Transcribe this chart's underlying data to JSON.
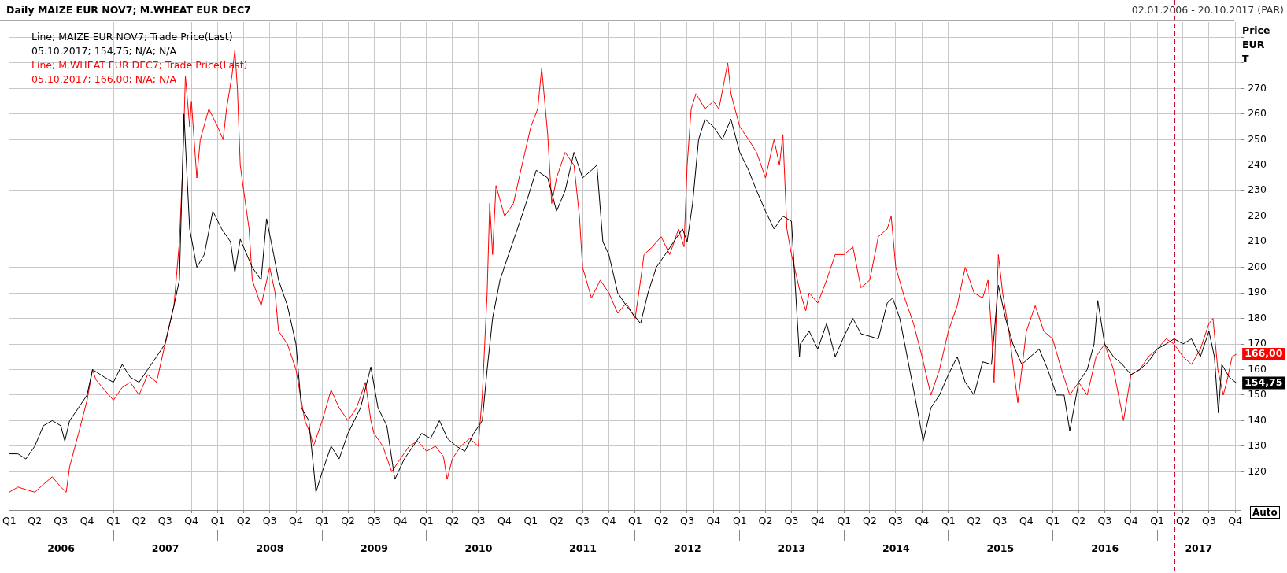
{
  "chart_data": {
    "type": "line",
    "title": "Daily MAIZE EUR NOV7; M.WHEAT EUR DEC7",
    "subtitle": "02.01.2006 - 20.10.2017 (PAR)",
    "ylabel": "Price EUR T",
    "annotations": [
      "05.10.2017; 154,75; N/A; N/A",
      "05.10.2017; 166,00; N/A; N/A",
      "Auto"
    ],
    "legend": "top left",
    "grid": true,
    "marker": "none",
    "line_style": "solid",
    "xlim": [
      "2006-01-02",
      "2017-10-20"
    ],
    "xticks": [
      {
        "value": "2006-01-02",
        "label": "Q1"
      },
      {
        "value": "2006-04-01",
        "label": "Q2"
      },
      {
        "value": "2006-07-01",
        "label": "Q3"
      },
      {
        "value": "2006-10-01",
        "label": "Q4"
      },
      {
        "value": "2007-01-01",
        "label": "Q1"
      },
      {
        "value": "2007-04-01",
        "label": "Q2"
      },
      {
        "value": "2007-07-01",
        "label": "Q3"
      },
      {
        "value": "2007-10-01",
        "label": "Q4"
      },
      {
        "value": "2008-01-01",
        "label": "Q1"
      },
      {
        "value": "2008-04-01",
        "label": "Q2"
      },
      {
        "value": "2008-07-01",
        "label": "Q3"
      },
      {
        "value": "2008-10-01",
        "label": "Q4"
      },
      {
        "value": "2009-01-01",
        "label": "Q1"
      },
      {
        "value": "2009-04-01",
        "label": "Q2"
      },
      {
        "value": "2009-07-01",
        "label": "Q3"
      },
      {
        "value": "2009-10-01",
        "label": "Q4"
      },
      {
        "value": "2010-01-01",
        "label": "Q1"
      },
      {
        "value": "2010-04-01",
        "label": "Q2"
      },
      {
        "value": "2010-07-01",
        "label": "Q3"
      },
      {
        "value": "2010-10-01",
        "label": "Q4"
      },
      {
        "value": "2011-01-01",
        "label": "Q1"
      },
      {
        "value": "2011-04-01",
        "label": "Q2"
      },
      {
        "value": "2011-07-01",
        "label": "Q3"
      },
      {
        "value": "2011-10-01",
        "label": "Q4"
      },
      {
        "value": "2012-01-01",
        "label": "Q1"
      },
      {
        "value": "2012-04-01",
        "label": "Q2"
      },
      {
        "value": "2012-07-01",
        "label": "Q3"
      },
      {
        "value": "2012-10-01",
        "label": "Q4"
      },
      {
        "value": "2013-01-01",
        "label": "Q1"
      },
      {
        "value": "2013-04-01",
        "label": "Q2"
      },
      {
        "value": "2013-07-01",
        "label": "Q3"
      },
      {
        "value": "2013-10-01",
        "label": "Q4"
      },
      {
        "value": "2014-01-01",
        "label": "Q1"
      },
      {
        "value": "2014-04-01",
        "label": "Q2"
      },
      {
        "value": "2014-07-01",
        "label": "Q3"
      },
      {
        "value": "2014-10-01",
        "label": "Q4"
      },
      {
        "value": "2015-01-01",
        "label": "Q1"
      },
      {
        "value": "2015-04-01",
        "label": "Q2"
      },
      {
        "value": "2015-07-01",
        "label": "Q3"
      },
      {
        "value": "2015-10-01",
        "label": "Q4"
      },
      {
        "value": "2016-01-01",
        "label": "Q1"
      },
      {
        "value": "2016-04-01",
        "label": "Q2"
      },
      {
        "value": "2016-07-01",
        "label": "Q3"
      },
      {
        "value": "2016-10-01",
        "label": "Q4"
      },
      {
        "value": "2017-01-01",
        "label": "Q1"
      },
      {
        "value": "2017-04-01",
        "label": "Q2"
      },
      {
        "value": "2017-07-01",
        "label": "Q3"
      },
      {
        "value": "2017-10-01",
        "label": "Q4"
      }
    ],
    "x2lim": [
      "2006-01-02",
      "2017-10-20"
    ],
    "x2ticks": [
      {
        "value": "2006-01-02",
        "label": null
      },
      {
        "value": "2006-07-02",
        "label": "2006"
      },
      {
        "value": "2007-01-01",
        "label": null
      },
      {
        "value": "2007-07-02",
        "label": "2007"
      },
      {
        "value": "2008-01-01",
        "label": null
      },
      {
        "value": "2008-07-02",
        "label": "2008"
      },
      {
        "value": "2009-01-01",
        "label": null
      },
      {
        "value": "2009-07-02",
        "label": "2009"
      },
      {
        "value": "2010-01-01",
        "label": null
      },
      {
        "value": "2010-07-02",
        "label": "2010"
      },
      {
        "value": "2011-01-01",
        "label": null
      },
      {
        "value": "2011-07-02",
        "label": "2011"
      },
      {
        "value": "2012-01-01",
        "label": null
      },
      {
        "value": "2012-07-02",
        "label": "2012"
      },
      {
        "value": "2013-01-01",
        "label": null
      },
      {
        "value": "2013-07-02",
        "label": "2013"
      },
      {
        "value": "2014-01-01",
        "label": null
      },
      {
        "value": "2014-07-02",
        "label": "2014"
      },
      {
        "value": "2015-01-01",
        "label": null
      },
      {
        "value": "2015-07-02",
        "label": "2015"
      },
      {
        "value": "2016-01-01",
        "label": null
      },
      {
        "value": "2016-07-02",
        "label": "2016"
      },
      {
        "value": "2017-01-01",
        "label": null
      },
      {
        "value": "2017-05-26",
        "label": "2017"
      }
    ],
    "ylim": [
      105,
      296
    ],
    "yticks": [
      {
        "value": 110,
        "label": null
      },
      120,
      130,
      140,
      150,
      160,
      170,
      180,
      190,
      200,
      210,
      220,
      230,
      240,
      250,
      260,
      270,
      {
        "value": 280,
        "label": null
      },
      {
        "value": 290,
        "label": null
      }
    ],
    "ref_lines": [
      {
        "axis": "x",
        "value": "2017-03-03",
        "label": null,
        "color": "#c8102e",
        "line_style": "dashed"
      }
    ],
    "series": [
      {
        "name": "Line; MAIZE EUR NOV7; Trade Price(Last)",
        "color": "#000000",
        "x": [
          "2006-01-02",
          "2006-02-01",
          "2006-03-01",
          "2006-04-01",
          "2006-05-01",
          "2006-06-01",
          "2006-07-01",
          "2006-07-15",
          "2006-08-01",
          "2006-09-01",
          "2006-10-01",
          "2006-10-20",
          "2006-12-01",
          "2007-01-01",
          "2007-02-01",
          "2007-03-01",
          "2007-04-01",
          "2007-05-01",
          "2007-06-01",
          "2007-07-01",
          "2007-08-01",
          "2007-08-20",
          "2007-09-05",
          "2007-09-25",
          "2007-10-20",
          "2007-11-15",
          "2007-12-15",
          "2008-01-15",
          "2008-02-15",
          "2008-03-01",
          "2008-03-20",
          "2008-05-01",
          "2008-06-01",
          "2008-06-20",
          "2008-07-15",
          "2008-08-01",
          "2008-09-01",
          "2008-10-01",
          "2008-10-20",
          "2008-11-15",
          "2008-12-10",
          "2009-01-01",
          "2009-02-01",
          "2009-03-01",
          "2009-04-01",
          "2009-05-15",
          "2009-06-20",
          "2009-07-15",
          "2009-08-15",
          "2009-09-12",
          "2009-10-15",
          "2009-11-15",
          "2009-12-15",
          "2010-01-15",
          "2010-02-15",
          "2010-03-15",
          "2010-04-15",
          "2010-05-15",
          "2010-06-15",
          "2010-07-15",
          "2010-08-01",
          "2010-08-20",
          "2010-09-15",
          "2010-10-15",
          "2010-11-15",
          "2010-12-15",
          "2011-01-20",
          "2011-03-01",
          "2011-04-01",
          "2011-05-01",
          "2011-06-01",
          "2011-07-01",
          "2011-08-01",
          "2011-08-20",
          "2011-09-10",
          "2011-10-01",
          "2011-11-01",
          "2011-12-01",
          "2012-01-20",
          "2012-02-15",
          "2012-03-15",
          "2012-04-15",
          "2012-05-15",
          "2012-06-15",
          "2012-07-01",
          "2012-07-20",
          "2012-08-10",
          "2012-09-01",
          "2012-10-01",
          "2012-11-01",
          "2012-12-01",
          "2013-01-01",
          "2013-02-01",
          "2013-03-01",
          "2013-04-01",
          "2013-05-01",
          "2013-06-01",
          "2013-07-01",
          "2013-07-29",
          "2013-08-01",
          "2013-09-01",
          "2013-10-01",
          "2013-11-01",
          "2013-12-01",
          "2014-01-01",
          "2014-02-01",
          "2014-03-01",
          "2014-04-01",
          "2014-05-01",
          "2014-06-01",
          "2014-06-20",
          "2014-07-15",
          "2014-08-10",
          "2014-09-05",
          "2014-10-05",
          "2014-11-01",
          "2014-12-01",
          "2015-01-01",
          "2015-02-01",
          "2015-03-01",
          "2015-04-01",
          "2015-05-01",
          "2015-06-01",
          "2015-06-25",
          "2015-07-20",
          "2015-08-15",
          "2015-09-15",
          "2015-10-15",
          "2015-11-15",
          "2015-12-15",
          "2016-01-15",
          "2016-02-10",
          "2016-03-01",
          "2016-04-01",
          "2016-05-01",
          "2016-05-25",
          "2016-06-07",
          "2016-07-01",
          "2016-08-01",
          "2016-09-01",
          "2016-10-01",
          "2016-11-01",
          "2016-12-01",
          "2017-01-01",
          "2017-02-01",
          "2017-03-01",
          "2017-04-01",
          "2017-05-01",
          "2017-06-01",
          "2017-07-01",
          "2017-07-20",
          "2017-08-03",
          "2017-08-15",
          "2017-09-10",
          "2017-10-05"
        ],
        "values": [
          127,
          127,
          125,
          130,
          138,
          140,
          138,
          132,
          140,
          145,
          150,
          160,
          157,
          155,
          162,
          157,
          155,
          160,
          165,
          170,
          185,
          195,
          260,
          215,
          200,
          205,
          222,
          215,
          210,
          198,
          211,
          200,
          195,
          219,
          205,
          195,
          185,
          170,
          145,
          140,
          112,
          120,
          130,
          125,
          135,
          145,
          161,
          145,
          138,
          117,
          125,
          130,
          135,
          133,
          140,
          133,
          130,
          128,
          135,
          140,
          160,
          180,
          195,
          205,
          215,
          225,
          238,
          235,
          222,
          230,
          245,
          235,
          238,
          240,
          210,
          205,
          190,
          185,
          178,
          190,
          200,
          205,
          210,
          215,
          210,
          225,
          250,
          258,
          255,
          250,
          258,
          245,
          238,
          230,
          222,
          215,
          220,
          218,
          165,
          170,
          175,
          168,
          178,
          165,
          173,
          180,
          174,
          173,
          172,
          186,
          188,
          180,
          165,
          150,
          132,
          145,
          150,
          158,
          165,
          155,
          150,
          163,
          162,
          193,
          180,
          170,
          162,
          165,
          168,
          160,
          150,
          150,
          136,
          155,
          160,
          170,
          187,
          170,
          165,
          162,
          158,
          160,
          163,
          168,
          170,
          172,
          170,
          172,
          165,
          175,
          165,
          143,
          162,
          157,
          154.75
        ],
        "value_labels": [
          null,
          null,
          null,
          null,
          null,
          null,
          null,
          null,
          null,
          null,
          null,
          null,
          null,
          null,
          null,
          null,
          null,
          null,
          null,
          null,
          null,
          null,
          null,
          null,
          null,
          null,
          null,
          null,
          null,
          null,
          null,
          null,
          null,
          null,
          null,
          null,
          null,
          null,
          null,
          null,
          null,
          null,
          null,
          null,
          null,
          null,
          null,
          null,
          null,
          null,
          null,
          null,
          null,
          null,
          null,
          null,
          null,
          null,
          null,
          null,
          null,
          null,
          null,
          null,
          null,
          null,
          null,
          null,
          null,
          null,
          null,
          null,
          null,
          null,
          null,
          null,
          null,
          null,
          null,
          null,
          null,
          null,
          null,
          null,
          null,
          null,
          null,
          null,
          null,
          null,
          null,
          null,
          null,
          null,
          null,
          null,
          null,
          null,
          null,
          null,
          null,
          null,
          null,
          null,
          null,
          null,
          null,
          null,
          null,
          null,
          null,
          null,
          null,
          null,
          null,
          null,
          null,
          null,
          null,
          null,
          null,
          null,
          null,
          null,
          null,
          null,
          null,
          null,
          null,
          null,
          null,
          null,
          null,
          null,
          null,
          null,
          null,
          null,
          null,
          null,
          null,
          null,
          null,
          null,
          null,
          null,
          null,
          null,
          null,
          null,
          null,
          null,
          null,
          null,
          "154,75"
        ]
      },
      {
        "name": "Line; M.WHEAT EUR DEC7; Trade Price(Last)",
        "color": "#ff0000",
        "x": [
          "2006-01-02",
          "2006-02-01",
          "2006-03-01",
          "2006-04-01",
          "2006-05-01",
          "2006-06-01",
          "2006-07-01",
          "2006-07-20",
          "2006-08-01",
          "2006-09-01",
          "2006-10-01",
          "2006-10-20",
          "2006-11-01",
          "2006-12-01",
          "2007-01-01",
          "2007-02-01",
          "2007-03-01",
          "2007-04-01",
          "2007-05-01",
          "2007-06-01",
          "2007-07-01",
          "2007-08-01",
          "2007-08-20",
          "2007-09-01",
          "2007-09-10",
          "2007-09-25",
          "2007-10-01",
          "2007-10-20",
          "2007-11-01",
          "2007-12-01",
          "2008-01-01",
          "2008-01-20",
          "2008-02-01",
          "2008-02-20",
          "2008-03-01",
          "2008-03-10",
          "2008-03-20",
          "2008-04-01",
          "2008-04-20",
          "2008-05-01",
          "2008-06-01",
          "2008-07-01",
          "2008-07-20",
          "2008-08-01",
          "2008-09-01",
          "2008-10-01",
          "2008-11-01",
          "2008-11-20",
          "2008-12-01",
          "2009-01-01",
          "2009-02-01",
          "2009-03-01",
          "2009-04-01",
          "2009-05-01",
          "2009-06-01",
          "2009-06-20",
          "2009-07-01",
          "2009-08-01",
          "2009-09-01",
          "2009-10-01",
          "2009-11-01",
          "2009-12-01",
          "2010-01-01",
          "2010-02-01",
          "2010-03-01",
          "2010-03-14",
          "2010-04-01",
          "2010-05-01",
          "2010-06-01",
          "2010-07-01",
          "2010-07-15",
          "2010-08-01",
          "2010-08-10",
          "2010-08-20",
          "2010-09-01",
          "2010-10-01",
          "2010-11-01",
          "2010-12-01",
          "2011-01-01",
          "2011-01-25",
          "2011-02-08",
          "2011-03-01",
          "2011-03-15",
          "2011-04-01",
          "2011-05-01",
          "2011-06-01",
          "2011-06-20",
          "2011-07-01",
          "2011-08-01",
          "2011-09-01",
          "2011-10-01",
          "2011-11-01",
          "2011-12-01",
          "2012-01-01",
          "2012-01-20",
          "2012-02-01",
          "2012-03-01",
          "2012-04-01",
          "2012-05-01",
          "2012-06-01",
          "2012-06-20",
          "2012-07-01",
          "2012-07-15",
          "2012-08-01",
          "2012-09-01",
          "2012-10-01",
          "2012-10-20",
          "2012-11-20",
          "2012-12-01",
          "2013-01-01",
          "2013-02-01",
          "2013-03-01",
          "2013-04-01",
          "2013-05-01",
          "2013-05-20",
          "2013-06-01",
          "2013-06-15",
          "2013-07-01",
          "2013-08-01",
          "2013-08-20",
          "2013-09-01",
          "2013-10-01",
          "2013-11-01",
          "2013-12-01",
          "2014-01-01",
          "2014-02-01",
          "2014-03-01",
          "2014-04-01",
          "2014-05-01",
          "2014-06-01",
          "2014-06-15",
          "2014-07-01",
          "2014-08-01",
          "2014-09-01",
          "2014-10-01",
          "2014-11-01",
          "2014-12-01",
          "2015-01-01",
          "2015-02-01",
          "2015-03-01",
          "2015-04-01",
          "2015-05-01",
          "2015-05-20",
          "2015-06-01",
          "2015-06-10",
          "2015-06-25",
          "2015-07-10",
          "2015-08-01",
          "2015-09-01",
          "2015-10-01",
          "2015-11-01",
          "2015-12-01",
          "2016-01-01",
          "2016-02-01",
          "2016-03-01",
          "2016-04-01",
          "2016-05-01",
          "2016-06-01",
          "2016-07-01",
          "2016-08-01",
          "2016-09-05",
          "2016-10-01",
          "2016-11-01",
          "2016-12-01",
          "2017-01-01",
          "2017-02-01",
          "2017-03-01",
          "2017-04-01",
          "2017-05-01",
          "2017-06-01",
          "2017-07-01",
          "2017-07-15",
          "2017-08-01",
          "2017-08-20",
          "2017-09-01",
          "2017-09-20",
          "2017-10-05"
        ],
        "values": [
          112,
          114,
          113,
          112,
          115,
          118,
          114,
          112,
          122,
          135,
          148,
          160,
          156,
          152,
          148,
          153,
          155,
          150,
          158,
          155,
          170,
          185,
          210,
          240,
          275,
          255,
          265,
          235,
          250,
          262,
          255,
          250,
          262,
          275,
          285,
          270,
          240,
          230,
          215,
          195,
          185,
          200,
          190,
          175,
          170,
          160,
          140,
          135,
          130,
          140,
          152,
          145,
          140,
          145,
          155,
          140,
          135,
          130,
          120,
          125,
          130,
          132,
          128,
          130,
          126,
          117,
          125,
          130,
          133,
          130,
          150,
          190,
          225,
          205,
          232,
          220,
          225,
          240,
          255,
          262,
          278,
          252,
          225,
          235,
          245,
          240,
          220,
          200,
          188,
          195,
          190,
          182,
          186,
          180,
          195,
          205,
          208,
          212,
          205,
          215,
          208,
          240,
          262,
          268,
          262,
          265,
          262,
          280,
          268,
          255,
          250,
          245,
          235,
          250,
          240,
          252,
          215,
          205,
          190,
          183,
          190,
          186,
          195,
          205,
          205,
          208,
          192,
          195,
          212,
          215,
          220,
          200,
          188,
          178,
          165,
          150,
          160,
          175,
          185,
          200,
          190,
          188,
          195,
          175,
          155,
          205,
          190,
          175,
          147,
          175,
          185,
          175,
          172,
          160,
          150,
          155,
          150,
          165,
          170,
          160,
          140,
          158,
          160,
          165,
          168,
          172,
          170,
          165,
          162,
          168,
          178,
          180,
          160,
          150,
          155,
          165,
          166
        ],
        "value_labels": [
          null,
          null,
          null,
          null,
          null,
          null,
          null,
          null,
          null,
          null,
          null,
          null,
          null,
          null,
          null,
          null,
          null,
          null,
          null,
          null,
          null,
          null,
          null,
          null,
          null,
          null,
          null,
          null,
          null,
          null,
          null,
          null,
          null,
          null,
          null,
          null,
          null,
          null,
          null,
          null,
          null,
          null,
          null,
          null,
          null,
          null,
          null,
          null,
          null,
          null,
          null,
          null,
          null,
          null,
          null,
          null,
          null,
          null,
          null,
          null,
          null,
          null,
          null,
          null,
          null,
          null,
          null,
          null,
          null,
          null,
          null,
          null,
          null,
          null,
          null,
          null,
          null,
          null,
          null,
          null,
          null,
          null,
          null,
          null,
          null,
          null,
          null,
          null,
          null,
          null,
          null,
          null,
          null,
          null,
          null,
          null,
          null,
          null,
          null,
          null,
          null,
          null,
          null,
          null,
          null,
          null,
          null,
          null,
          null,
          null,
          null,
          null,
          null,
          null,
          null,
          null,
          null,
          null,
          null,
          null,
          null,
          null,
          null,
          null,
          null,
          null,
          null,
          null,
          null,
          null,
          null,
          null,
          null,
          null,
          null,
          null,
          null,
          null,
          null,
          null,
          null,
          null,
          null,
          null,
          null,
          null,
          null,
          null,
          null,
          null,
          null,
          null,
          null,
          null,
          null,
          null,
          null,
          null,
          null,
          null,
          null,
          null,
          null,
          null,
          null,
          null,
          null,
          null,
          null,
          null,
          null,
          null,
          null,
          null,
          null,
          null,
          "166,00"
        ]
      }
    ]
  }
}
